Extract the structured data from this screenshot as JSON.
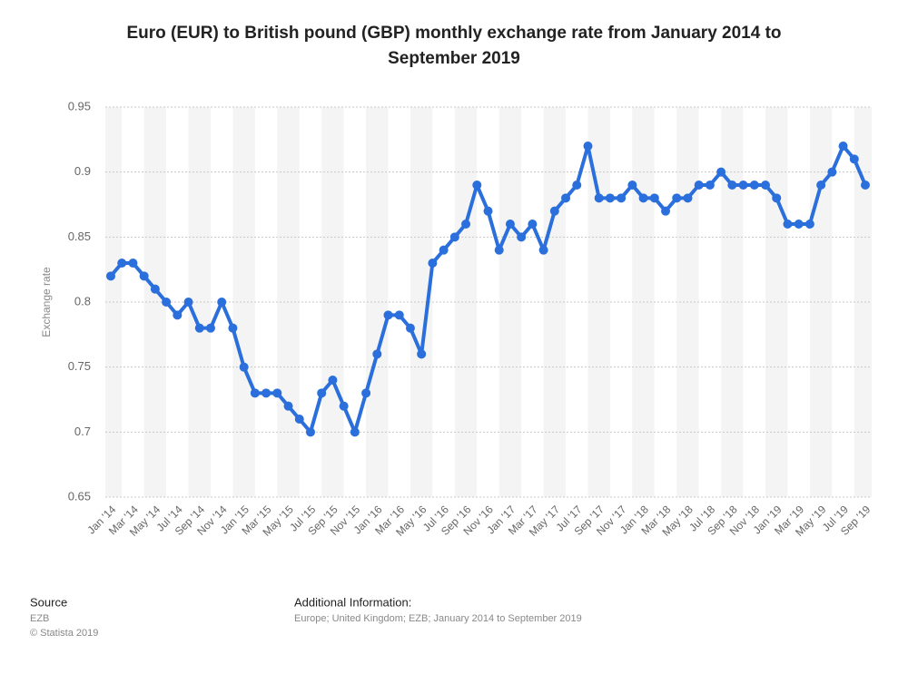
{
  "chart_data": {
    "type": "line",
    "title": "Euro (EUR) to British pound (GBP) monthly exchange rate from January 2014 to September 2019",
    "y_label": "Exchange rate",
    "categories": [
      "Jan '14",
      null,
      "Mar '14",
      null,
      "May '14",
      null,
      "Jul '14",
      null,
      "Sep '14",
      null,
      "Nov '14",
      null,
      "Jan '15",
      null,
      "Mar '15",
      null,
      "May '15",
      null,
      "Jul '15",
      null,
      "Sep '15",
      null,
      "Nov '15",
      null,
      "Jan '16",
      null,
      "Mar '16",
      null,
      "May '16",
      null,
      "Jul '16",
      null,
      "Sep '16",
      null,
      "Nov '16",
      null,
      "Jan '17",
      null,
      "Mar '17",
      null,
      "May '17",
      null,
      "Jul '17",
      null,
      "Sep '17",
      null,
      "Nov '17",
      null,
      "Jan '18",
      null,
      "Mar '18",
      null,
      "May '18",
      null,
      "Jul '18",
      null,
      "Sep '18",
      null,
      "Nov '18",
      null,
      "Jan '19",
      null,
      "Mar '19",
      null,
      "May '19",
      null,
      "Jul '19",
      null,
      "Sep '19"
    ],
    "values": [
      0.82,
      0.83,
      0.83,
      0.82,
      0.81,
      0.8,
      0.79,
      0.8,
      0.78,
      0.78,
      0.8,
      0.78,
      0.75,
      0.73,
      0.73,
      0.73,
      0.72,
      0.71,
      0.7,
      0.73,
      0.74,
      0.72,
      0.7,
      0.73,
      0.76,
      0.79,
      0.79,
      0.78,
      0.76,
      0.83,
      0.84,
      0.85,
      0.86,
      0.89,
      0.87,
      0.84,
      0.86,
      0.85,
      0.86,
      0.84,
      0.87,
      0.88,
      0.89,
      0.92,
      0.88,
      0.88,
      0.88,
      0.89,
      0.88,
      0.88,
      0.87,
      0.88,
      0.88,
      0.89,
      0.89,
      0.9,
      0.89,
      0.89,
      0.89,
      0.89,
      0.88,
      0.86,
      0.86,
      0.86,
      0.89,
      0.9,
      0.92,
      0.91,
      0.89
    ],
    "color": "#2a6fdb",
    "ylim": [
      0.65,
      0.95
    ],
    "yticks": [
      0.65,
      0.7,
      0.75,
      0.8,
      0.85,
      0.9,
      0.95
    ],
    "grid": true
  },
  "footer": {
    "source_title": "Source",
    "source": "EZB",
    "copyright": "© Statista 2019",
    "info_title": "Additional Information:",
    "info": "Europe; United Kingdom; EZB; January 2014 to September 2019"
  }
}
